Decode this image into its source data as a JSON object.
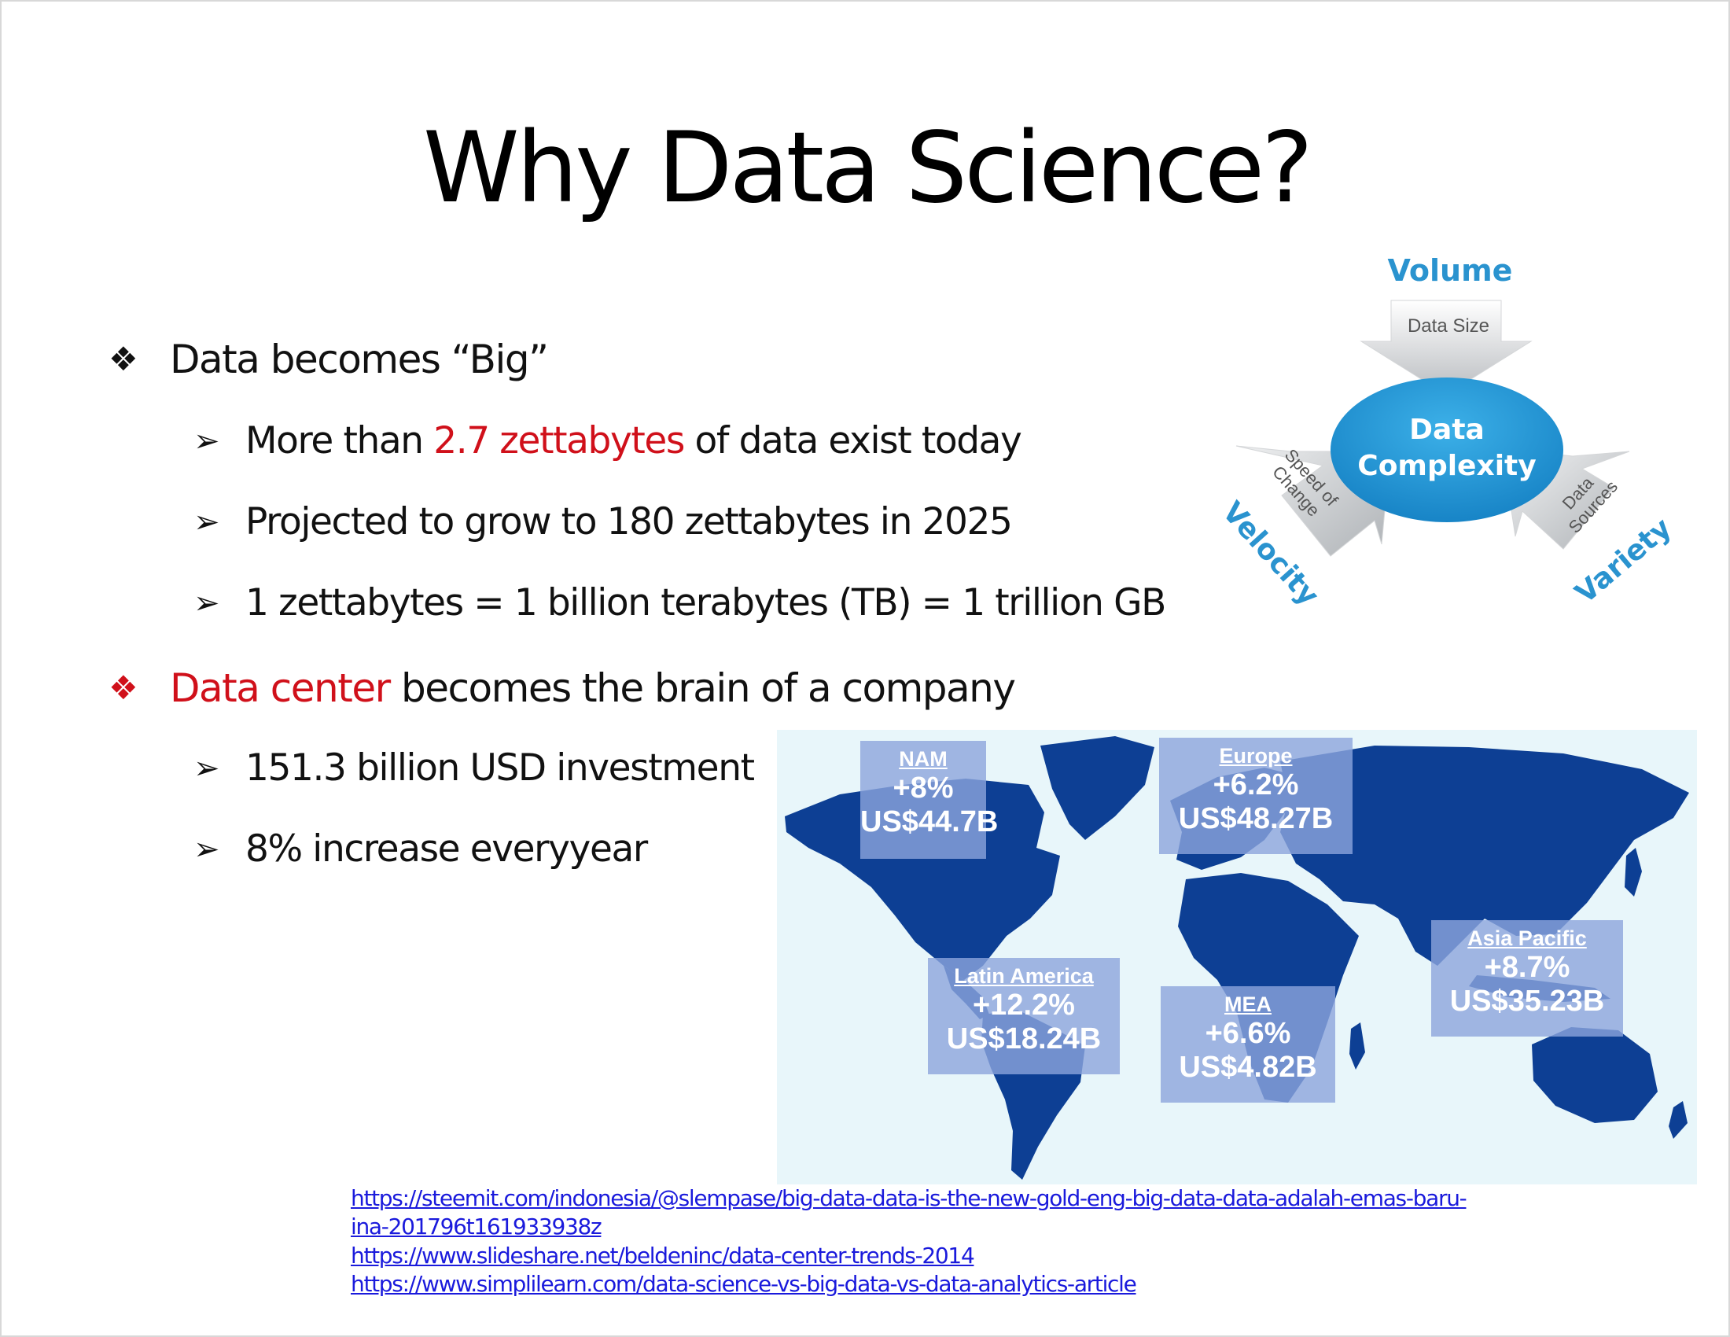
{
  "slide": {
    "title": "Why Data Science?",
    "bullets": {
      "big": {
        "text": "Data becomes “Big”",
        "subs": {
          "s1": {
            "pre": "More than ",
            "highlight": "2.7 zettabytes",
            "post": " of data exist today"
          },
          "s2": {
            "text": "Projected to grow to 180 zettabytes in 2025"
          },
          "s3": {
            "text": "1 zettabytes = 1 billion terabytes (TB) = 1 trillion GB"
          }
        }
      },
      "center": {
        "highlight": "Data center",
        "post": " becomes the brain of a company",
        "subs": {
          "s1": {
            "text": "151.3 billion USD investment"
          },
          "s2": {
            "text": "8%  increase everyyear"
          }
        }
      }
    },
    "diagram": {
      "volume": "Volume",
      "data_size": "Data Size",
      "center_line1": "Data",
      "center_line2": "Complexity",
      "speed_line1": "Speed of",
      "speed_line2": "Change",
      "velocity": "Velocity",
      "sources_line1": "Data",
      "sources_line2": "Sources",
      "variety": "Variety"
    },
    "map": {
      "regions": {
        "nam": {
          "name": "NAM",
          "growth": "+8%",
          "value": "US$44.7B"
        },
        "europe": {
          "name": "Europe",
          "growth": "+6.2%",
          "value": "US$48.27B"
        },
        "latam": {
          "name": "Latin America",
          "growth": "+12.2%",
          "value": "US$18.24B"
        },
        "mea": {
          "name": "MEA",
          "growth": "+6.6%",
          "value": "US$4.82B"
        },
        "apac": {
          "name": "Asia Pacific",
          "growth": "+8.7%",
          "value": "US$35.23B"
        }
      }
    },
    "links": {
      "l1a": "https://steemit.com/indonesia/@slempase/big-data-data-is-the-new-gold-eng-big-data-data-adalah-emas-baru-",
      "l1b": "ina-201796t161933938z",
      "l2": "https://www.slideshare.net/beldeninc/data-center-trends-2014",
      "l3": "https://www.simplilearn.com/data-science-vs-big-data-vs-data-analytics-article"
    },
    "colors": {
      "accent_red": "#d0101a",
      "link_blue": "#1a1adc",
      "map_ocean": "#e8f6fa",
      "map_land": "#0d3f94",
      "diagram_blue": "#1d93d2"
    }
  }
}
